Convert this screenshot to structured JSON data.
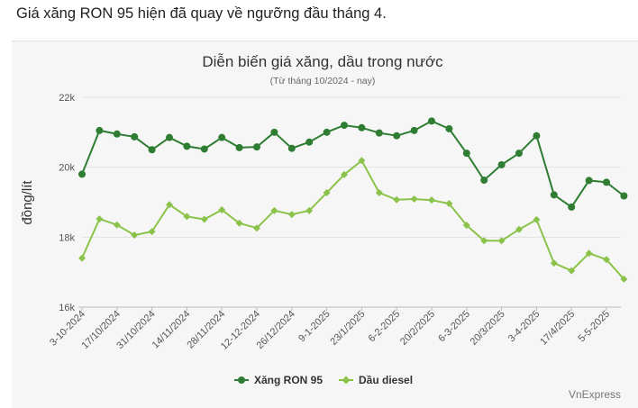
{
  "caption": "Giá xăng RON 95 hiện đã quay về ngưỡng đầu tháng 4.",
  "source": "VnExpress",
  "chart_data": {
    "type": "line",
    "title": "Diễn biến giá xăng, dầu trong nước",
    "subtitle": "(Từ tháng 10/2024 - nay)",
    "ylabel": "đồng/lít",
    "xlabel": "",
    "ylim": [
      16000,
      22000
    ],
    "yticks": [
      {
        "value": 16000,
        "label": "16k"
      },
      {
        "value": 18000,
        "label": "18k"
      },
      {
        "value": 20000,
        "label": "20k"
      },
      {
        "value": 22000,
        "label": "22k"
      }
    ],
    "grid": true,
    "legend_position": "bottom",
    "x_labels": [
      {
        "index": 0,
        "label": "3-10-2024"
      },
      {
        "index": 2,
        "label": "17/10/2024"
      },
      {
        "index": 4,
        "label": "31/10/2024"
      },
      {
        "index": 6,
        "label": "14/11/2024"
      },
      {
        "index": 8,
        "label": "28/11/2024"
      },
      {
        "index": 10,
        "label": "12-12-2024"
      },
      {
        "index": 12,
        "label": "26/12/2024"
      },
      {
        "index": 14,
        "label": "9-1-2025"
      },
      {
        "index": 16,
        "label": "23/1/2025"
      },
      {
        "index": 18,
        "label": "6-2-2025"
      },
      {
        "index": 20,
        "label": "20/2/2025"
      },
      {
        "index": 22,
        "label": "6-3-2025"
      },
      {
        "index": 24,
        "label": "20/3/2025"
      },
      {
        "index": 26,
        "label": "3-4-2025"
      },
      {
        "index": 28,
        "label": "17/4/2025"
      },
      {
        "index": 30,
        "label": "5-5-2025"
      }
    ],
    "point_count": 32,
    "series": [
      {
        "name": "Xăng RON 95",
        "color": "#2e7d32",
        "marker": "circle",
        "values": [
          19800,
          21050,
          20950,
          20870,
          20500,
          20850,
          20600,
          20520,
          20850,
          20560,
          20580,
          21000,
          20540,
          20720,
          21000,
          21200,
          21130,
          20980,
          20900,
          21050,
          21320,
          21100,
          20400,
          19630,
          20070,
          20400,
          20900,
          19210,
          18860,
          19620,
          19570,
          19180
        ]
      },
      {
        "name": "Dầu diesel",
        "color": "#8bc34a",
        "marker": "diamond",
        "values": [
          17400,
          18520,
          18350,
          18060,
          18160,
          18930,
          18590,
          18510,
          18780,
          18400,
          18260,
          18760,
          18650,
          18760,
          19270,
          19790,
          20190,
          19270,
          19070,
          19090,
          19060,
          18960,
          18340,
          17900,
          17900,
          18220,
          18500,
          17260,
          17040,
          17540,
          17360,
          16800
        ]
      }
    ]
  }
}
